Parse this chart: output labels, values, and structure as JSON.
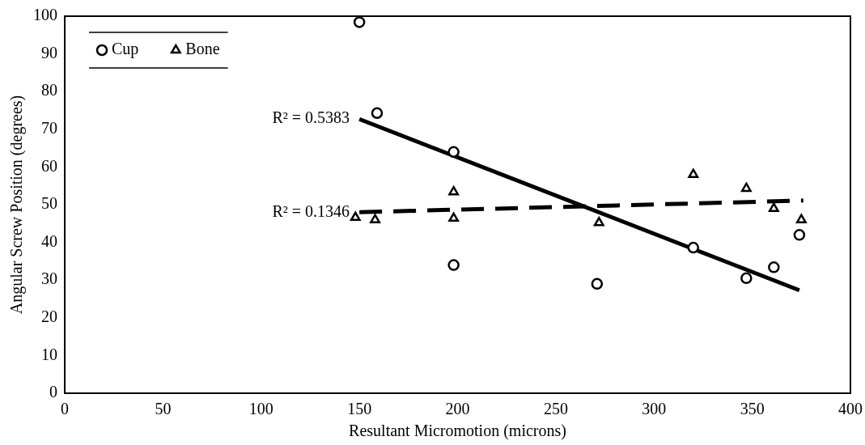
{
  "chart_data": {
    "type": "scatter",
    "xlabel": "Resultant Micromotion (microns)",
    "ylabel": "Angular Screw Position (degrees)",
    "xlim": [
      0,
      400
    ],
    "xticks": [
      0,
      50,
      100,
      150,
      200,
      250,
      300,
      350,
      400
    ],
    "ylim": [
      0,
      100
    ],
    "yticks": [
      0,
      10,
      20,
      30,
      40,
      50,
      60,
      70,
      80,
      90,
      100
    ],
    "grid": false,
    "legend": "top left",
    "series": [
      {
        "name": "Cup",
        "color": "#000000",
        "marker": "circle",
        "x": [
          150,
          159,
          198,
          198,
          271,
          320,
          347,
          361,
          374
        ],
        "values": [
          98.4,
          74.3,
          64,
          34,
          29,
          38.6,
          30.5,
          33.4,
          42
        ]
      },
      {
        "name": "Bone",
        "color": "#000000",
        "marker": "triangle",
        "x": [
          148,
          158,
          198,
          198,
          272,
          320,
          347,
          361,
          375
        ],
        "values": [
          46.6,
          46,
          53.4,
          46.4,
          45.2,
          58,
          54.3,
          49,
          46
        ]
      },
      {
        "type": "line",
        "color": "#000000",
        "marker": "none",
        "line_style": "solid",
        "x": [
          150,
          374
        ],
        "values": [
          72.7,
          27.3
        ]
      },
      {
        "type": "line",
        "color": "#000000",
        "marker": "none",
        "line_style": "dashed",
        "x": [
          150,
          376
        ],
        "values": [
          48,
          51.1
        ]
      }
    ],
    "annotations": [
      {
        "text": "R² = 0.5383",
        "x": 150,
        "y": 72.7
      },
      {
        "text": "R² = 0.1346",
        "x": 150,
        "y": 48
      }
    ]
  }
}
